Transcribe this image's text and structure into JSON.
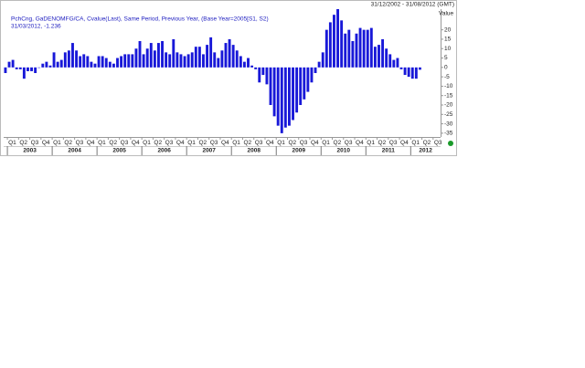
{
  "chart_data": {
    "type": "bar",
    "date_range": "31/12/2002 - 31/08/2012 (GMT)",
    "legend_line1": "PchCng, GaDENOMFG/CA, Cvalue(Last), Same Period, Previous Year, (Base Year=2005[S1, S2)",
    "legend_line2": "31/03/2012, -1.236",
    "y_label": "Value",
    "color": "#1818d8",
    "values": [
      -3,
      3,
      4,
      -1,
      -1,
      -6,
      -2,
      -2,
      -3,
      0,
      2,
      3,
      1,
      8,
      3,
      4,
      8,
      9,
      13,
      9,
      6,
      7,
      6,
      3,
      2,
      6,
      6,
      5,
      3,
      2,
      5,
      6,
      7,
      7,
      7,
      10,
      14,
      7,
      10,
      13,
      9,
      13,
      14,
      8,
      7,
      15,
      8,
      7,
      6,
      7,
      8,
      11,
      11,
      7,
      12,
      16,
      8,
      5,
      9,
      13,
      15,
      12,
      9,
      6,
      3,
      5,
      1,
      -1,
      -8,
      -4,
      -9,
      -20,
      -26,
      -31,
      -35,
      -32,
      -31,
      -28,
      -24,
      -20,
      -17,
      -13,
      -8,
      -3,
      3,
      8,
      20,
      24,
      28,
      31,
      25,
      18,
      20,
      14,
      18,
      21,
      20,
      20,
      21,
      11,
      12,
      15,
      10,
      7,
      4,
      5,
      -1,
      -4,
      -5,
      -6,
      -6,
      -1.236
    ],
    "quarters": [
      "Q1",
      "Q2",
      "Q3",
      "Q4",
      "Q1",
      "Q2",
      "Q3",
      "Q4",
      "Q1",
      "Q2",
      "Q3",
      "Q4",
      "Q1",
      "Q2",
      "Q3",
      "Q4",
      "Q1",
      "Q2",
      "Q3",
      "Q4",
      "Q1",
      "Q2",
      "Q3",
      "Q4",
      "Q1",
      "Q2",
      "Q3",
      "Q4",
      "Q1",
      "Q2",
      "Q3",
      "Q4",
      "Q1",
      "Q2",
      "Q3",
      "Q4",
      "Q1",
      "Q2",
      "Q3"
    ],
    "years": [
      "2003",
      "2004",
      "2005",
      "2006",
      "2007",
      "2008",
      "2009",
      "2010",
      "2011",
      "2012"
    ],
    "ylim": [
      -37,
      31
    ],
    "yticks": [
      20,
      15,
      10,
      5,
      0,
      -5,
      -10,
      -15,
      -20,
      -25,
      -30,
      -35
    ]
  }
}
